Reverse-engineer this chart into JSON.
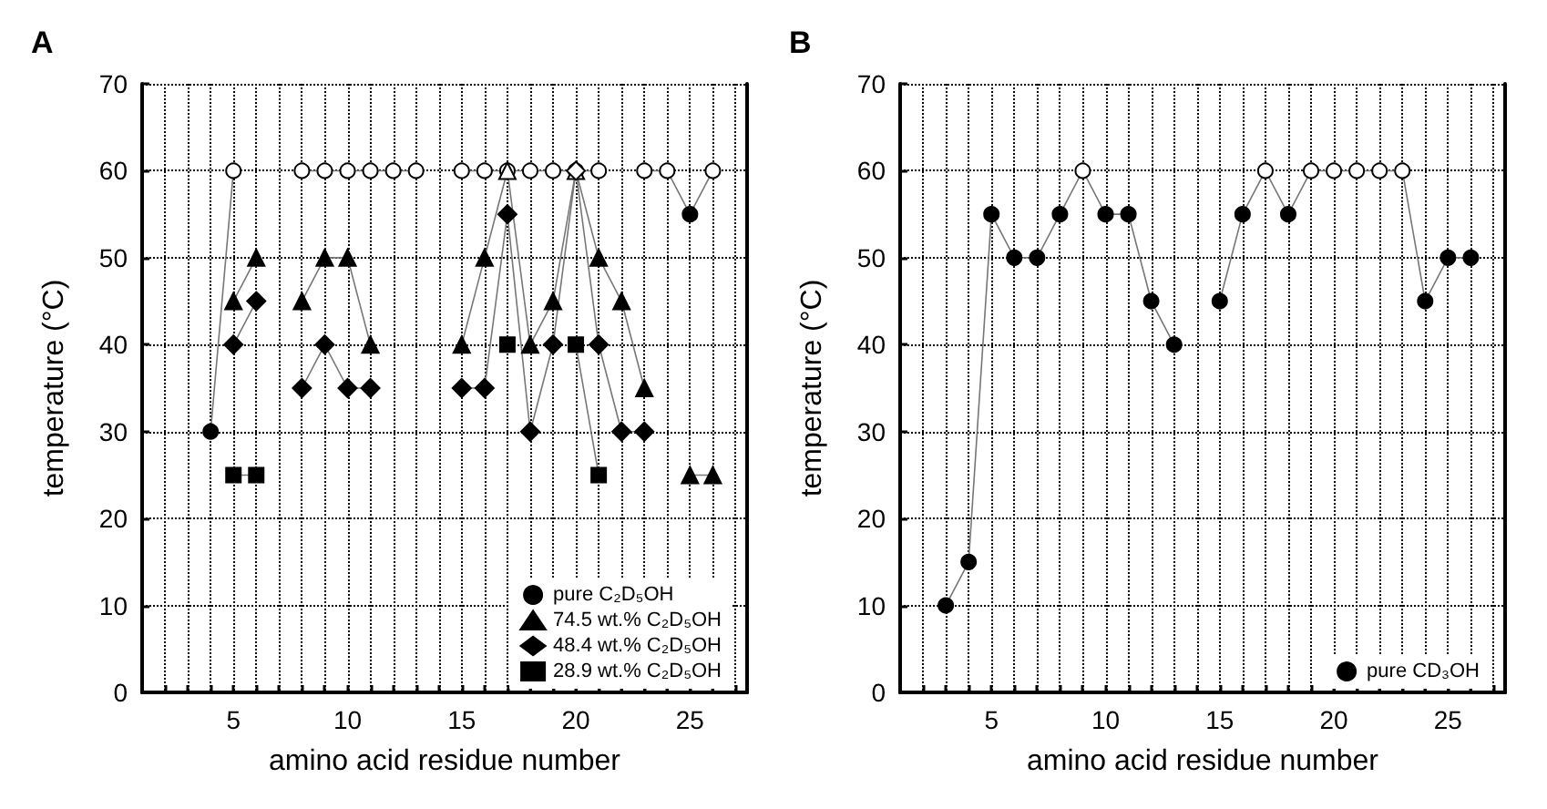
{
  "chart_data": [
    {
      "type": "line",
      "title": "A",
      "xlabel": "amino acid residue number",
      "ylabel": "temperature (°C)",
      "x": [
        4,
        5,
        6,
        7,
        8,
        9,
        10,
        11,
        12,
        13,
        14,
        15,
        16,
        17,
        18,
        19,
        20,
        21,
        22,
        23,
        24,
        25,
        26
      ],
      "xlim": [
        1,
        27.5
      ],
      "xticks": [
        {
          "value": 2,
          "label": null
        },
        {
          "value": 3,
          "label": null
        },
        {
          "value": 4,
          "label": null
        },
        5,
        {
          "value": 6,
          "label": null
        },
        {
          "value": 7,
          "label": null
        },
        {
          "value": 8,
          "label": null
        },
        {
          "value": 9,
          "label": null
        },
        10,
        {
          "value": 11,
          "label": null
        },
        {
          "value": 12,
          "label": null
        },
        {
          "value": 13,
          "label": null
        },
        {
          "value": 14,
          "label": null
        },
        15,
        {
          "value": 16,
          "label": null
        },
        {
          "value": 17,
          "label": null
        },
        {
          "value": 18,
          "label": null
        },
        {
          "value": 19,
          "label": null
        },
        20,
        {
          "value": 21,
          "label": null
        },
        {
          "value": 22,
          "label": null
        },
        {
          "value": 23,
          "label": null
        },
        {
          "value": 24,
          "label": null
        },
        25,
        {
          "value": 26,
          "label": null
        },
        {
          "value": 27,
          "label": null
        }
      ],
      "ylim": [
        0,
        70
      ],
      "yticks": [
        0,
        10,
        20,
        30,
        40,
        50,
        60,
        70
      ],
      "grid": true,
      "legend": "bottom right",
      "series": [
        {
          "name": "pure C₂D₅OH",
          "marker": "circle",
          "color": "#000000",
          "values": [
            30,
            60,
            null,
            null,
            60,
            60,
            60,
            60,
            60,
            60,
            null,
            60,
            60,
            60,
            60,
            60,
            60,
            60,
            null,
            60,
            60,
            55,
            60
          ],
          "colors": [
            "#000000",
            "#ffffff",
            null,
            null,
            "#ffffff",
            "#ffffff",
            "#ffffff",
            "#ffffff",
            "#ffffff",
            "#ffffff",
            null,
            "#ffffff",
            "#ffffff",
            "#ffffff",
            "#ffffff",
            "#ffffff",
            "#ffffff",
            "#ffffff",
            null,
            "#ffffff",
            "#ffffff",
            "#000000",
            "#ffffff"
          ]
        },
        {
          "name": "74.5 wt.% C₂D₅OH",
          "marker": "triangle",
          "color": "#000000",
          "values": [
            null,
            45,
            50,
            null,
            45,
            50,
            50,
            40,
            null,
            null,
            null,
            40,
            50,
            60,
            40,
            45,
            60,
            50,
            45,
            35,
            null,
            25,
            25
          ],
          "colors": [
            null,
            "#000000",
            "#000000",
            null,
            "#000000",
            "#000000",
            "#000000",
            "#000000",
            null,
            null,
            null,
            "#000000",
            "#000000",
            "#ffffff",
            "#000000",
            "#000000",
            "#ffffff",
            "#000000",
            "#000000",
            "#000000",
            null,
            "#000000",
            "#000000"
          ]
        },
        {
          "name": "48.4 wt.% C₂D₅OH",
          "marker": "diamond",
          "color": "#000000",
          "values": [
            null,
            40,
            45,
            null,
            35,
            40,
            35,
            35,
            null,
            null,
            null,
            35,
            35,
            55,
            30,
            40,
            60,
            40,
            30,
            30,
            null,
            null,
            null
          ],
          "colors": [
            null,
            "#000000",
            "#000000",
            null,
            "#000000",
            "#000000",
            "#000000",
            "#000000",
            null,
            null,
            null,
            "#000000",
            "#000000",
            "#000000",
            "#000000",
            "#000000",
            "#ffffff",
            "#000000",
            "#000000",
            "#000000",
            null,
            null,
            null
          ]
        },
        {
          "name": "28.9 wt.% C₂D₅OH",
          "marker": "square",
          "color": "#000000",
          "values": [
            null,
            25,
            25,
            null,
            null,
            null,
            null,
            null,
            null,
            null,
            null,
            null,
            null,
            40,
            null,
            null,
            40,
            25,
            null,
            null,
            null,
            null,
            null
          ]
        }
      ]
    },
    {
      "type": "line",
      "title": "B",
      "xlabel": "amino acid residue number",
      "ylabel": "temperature (°C)",
      "x": [
        3,
        4,
        5,
        6,
        7,
        8,
        9,
        10,
        11,
        12,
        13,
        14,
        15,
        16,
        17,
        18,
        19,
        20,
        21,
        22,
        23,
        24,
        25,
        26
      ],
      "xlim": [
        1,
        27.5
      ],
      "xticks": [
        {
          "value": 2,
          "label": null
        },
        {
          "value": 3,
          "label": null
        },
        {
          "value": 4,
          "label": null
        },
        5,
        {
          "value": 6,
          "label": null
        },
        {
          "value": 7,
          "label": null
        },
        {
          "value": 8,
          "label": null
        },
        {
          "value": 9,
          "label": null
        },
        10,
        {
          "value": 11,
          "label": null
        },
        {
          "value": 12,
          "label": null
        },
        {
          "value": 13,
          "label": null
        },
        {
          "value": 14,
          "label": null
        },
        15,
        {
          "value": 16,
          "label": null
        },
        {
          "value": 17,
          "label": null
        },
        {
          "value": 18,
          "label": null
        },
        {
          "value": 19,
          "label": null
        },
        20,
        {
          "value": 21,
          "label": null
        },
        {
          "value": 22,
          "label": null
        },
        {
          "value": 23,
          "label": null
        },
        {
          "value": 24,
          "label": null
        },
        25,
        {
          "value": 26,
          "label": null
        },
        {
          "value": 27,
          "label": null
        }
      ],
      "ylim": [
        0,
        70
      ],
      "yticks": [
        0,
        10,
        20,
        30,
        40,
        50,
        60,
        70
      ],
      "grid": true,
      "legend": "bottom right",
      "series": [
        {
          "name": "pure CD₃OH",
          "marker": "circle",
          "color": "#000000",
          "values": [
            10,
            15,
            55,
            50,
            50,
            55,
            60,
            55,
            55,
            45,
            40,
            null,
            45,
            55,
            60,
            55,
            60,
            60,
            60,
            60,
            60,
            45,
            50,
            50
          ],
          "colors": [
            "#000000",
            "#000000",
            "#000000",
            "#000000",
            "#000000",
            "#000000",
            "#ffffff",
            "#000000",
            "#000000",
            "#000000",
            "#000000",
            null,
            "#000000",
            "#000000",
            "#ffffff",
            "#000000",
            "#ffffff",
            "#ffffff",
            "#ffffff",
            "#ffffff",
            "#ffffff",
            "#000000",
            "#000000",
            "#000000"
          ]
        }
      ]
    }
  ]
}
